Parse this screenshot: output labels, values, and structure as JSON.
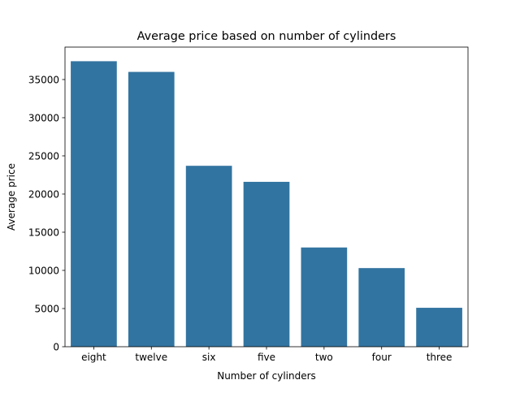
{
  "chart_data": {
    "type": "bar",
    "title": "Average price based on number of cylinders",
    "xlabel": "Number of cylinders",
    "ylabel": "Average price",
    "categories": [
      "eight",
      "twelve",
      "six",
      "five",
      "two",
      "four",
      "three"
    ],
    "values": [
      37400,
      36000,
      23700,
      21600,
      13000,
      10300,
      5100
    ],
    "ylim": [
      0,
      39250
    ],
    "yticks": [
      0,
      5000,
      10000,
      15000,
      20000,
      25000,
      30000,
      35000
    ],
    "grid": false,
    "bar_color": "#3274a1"
  }
}
